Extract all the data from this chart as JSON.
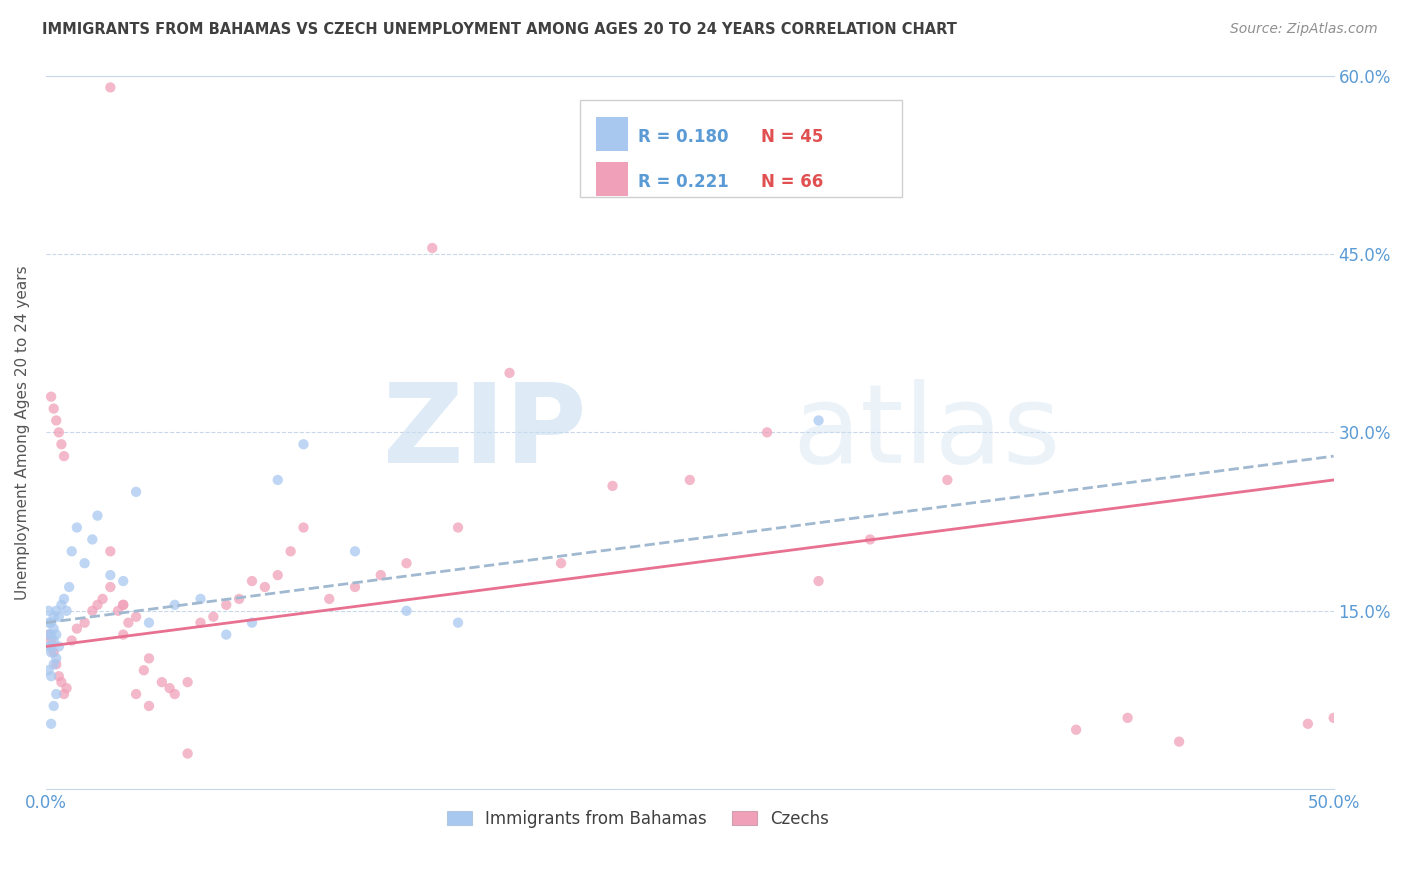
{
  "title": "IMMIGRANTS FROM BAHAMAS VS CZECH UNEMPLOYMENT AMONG AGES 20 TO 24 YEARS CORRELATION CHART",
  "source": "Source: ZipAtlas.com",
  "ylabel": "Unemployment Among Ages 20 to 24 years",
  "xlim": [
    0.0,
    0.5
  ],
  "ylim": [
    0.0,
    0.6
  ],
  "color_blue": "#a8c8f0",
  "color_pink": "#f0a0b8",
  "color_line_blue": "#a0b8d0",
  "color_line_pink": "#e87090",
  "color_tick_label": "#5b9bd5",
  "color_title": "#404040",
  "color_source": "#909090",
  "color_legend_r": "#5b9bd5",
  "color_legend_n": "#e05050",
  "blue_scatter_x": [
    0.001,
    0.001,
    0.001,
    0.001,
    0.001,
    0.002,
    0.002,
    0.002,
    0.002,
    0.002,
    0.003,
    0.003,
    0.003,
    0.003,
    0.004,
    0.004,
    0.004,
    0.005,
    0.005,
    0.006,
    0.007,
    0.008,
    0.009,
    0.01,
    0.012,
    0.015,
    0.018,
    0.02,
    0.025,
    0.03,
    0.035,
    0.04,
    0.05,
    0.06,
    0.07,
    0.08,
    0.09,
    0.1,
    0.12,
    0.14,
    0.16,
    0.3,
    0.002,
    0.003,
    0.004
  ],
  "blue_scatter_y": [
    0.13,
    0.14,
    0.12,
    0.15,
    0.1,
    0.13,
    0.12,
    0.14,
    0.115,
    0.095,
    0.105,
    0.125,
    0.135,
    0.145,
    0.11,
    0.13,
    0.15,
    0.12,
    0.145,
    0.155,
    0.16,
    0.15,
    0.17,
    0.2,
    0.22,
    0.19,
    0.21,
    0.23,
    0.18,
    0.175,
    0.25,
    0.14,
    0.155,
    0.16,
    0.13,
    0.14,
    0.26,
    0.29,
    0.2,
    0.15,
    0.14,
    0.31,
    0.055,
    0.07,
    0.08
  ],
  "pink_scatter_x": [
    0.001,
    0.002,
    0.003,
    0.004,
    0.005,
    0.006,
    0.007,
    0.008,
    0.01,
    0.012,
    0.015,
    0.018,
    0.02,
    0.022,
    0.025,
    0.025,
    0.028,
    0.03,
    0.03,
    0.032,
    0.035,
    0.038,
    0.04,
    0.045,
    0.048,
    0.05,
    0.055,
    0.06,
    0.065,
    0.07,
    0.075,
    0.08,
    0.085,
    0.09,
    0.095,
    0.1,
    0.11,
    0.12,
    0.13,
    0.14,
    0.15,
    0.16,
    0.18,
    0.2,
    0.22,
    0.25,
    0.28,
    0.3,
    0.32,
    0.35,
    0.4,
    0.42,
    0.44,
    0.002,
    0.003,
    0.004,
    0.005,
    0.006,
    0.007,
    0.025,
    0.03,
    0.035,
    0.04,
    0.055,
    0.5,
    0.49
  ],
  "pink_scatter_y": [
    0.13,
    0.125,
    0.115,
    0.105,
    0.095,
    0.09,
    0.08,
    0.085,
    0.125,
    0.135,
    0.14,
    0.15,
    0.155,
    0.16,
    0.17,
    0.59,
    0.15,
    0.155,
    0.13,
    0.14,
    0.145,
    0.1,
    0.11,
    0.09,
    0.085,
    0.08,
    0.09,
    0.14,
    0.145,
    0.155,
    0.16,
    0.175,
    0.17,
    0.18,
    0.2,
    0.22,
    0.16,
    0.17,
    0.18,
    0.19,
    0.455,
    0.22,
    0.35,
    0.19,
    0.255,
    0.26,
    0.3,
    0.175,
    0.21,
    0.26,
    0.05,
    0.06,
    0.04,
    0.33,
    0.32,
    0.31,
    0.3,
    0.29,
    0.28,
    0.2,
    0.155,
    0.08,
    0.07,
    0.03,
    0.06,
    0.055
  ],
  "blue_trend_x0": 0.0,
  "blue_trend_x1": 0.5,
  "blue_trend_y0": 0.14,
  "blue_trend_y1": 0.28,
  "pink_trend_x0": 0.0,
  "pink_trend_x1": 0.5,
  "pink_trend_y0": 0.12,
  "pink_trend_y1": 0.26
}
